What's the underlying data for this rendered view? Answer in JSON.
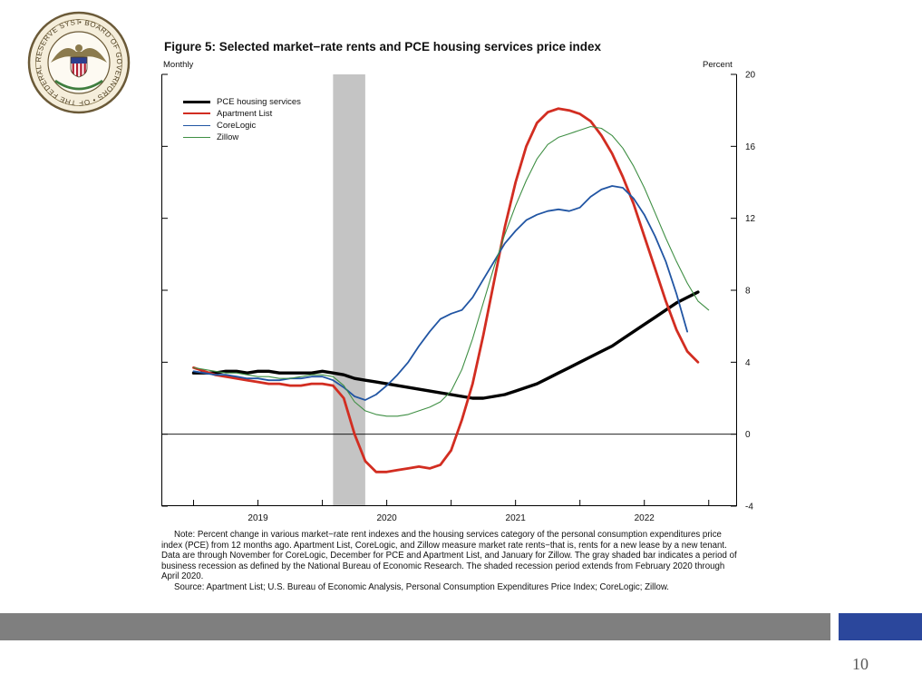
{
  "slide": {
    "page_number": "10"
  },
  "seal": {
    "text": "• BOARD OF GOVERNORS • OF THE FEDERAL RESERVE SYSTEM"
  },
  "figure": {
    "title": "Figure 5: Selected market−rate rents and PCE housing services price index",
    "note": "Note: Percent change in various market−rate rent indexes and the housing services category of the personal consumption expenditures price index (PCE) from 12 months ago. Apartment List, CoreLogic, and Zillow measure market rate rents−that is, rents for a new lease by a new tenant. Data are through November for CoreLogic, December for PCE and Apartment List, and January for Zillow. The gray shaded bar indicates a period of business recession as defined by the National Bureau of Economic Research. The shaded recession period extends from February 2020 through April 2020.",
    "source": "Source: Apartment List; U.S. Bureau of Economic Analysis, Personal Consumption Expenditures Price Index; CoreLogic; Zillow."
  },
  "footer": {
    "bar_color": "#7f7f7f",
    "accent_color": "#2b479c"
  },
  "chart_data": {
    "type": "line",
    "title": "Figure 5: Selected market−rate rents and PCE housing services price index",
    "corner_labels": {
      "left": "Monthly",
      "right": "Percent"
    },
    "xlabel": "",
    "ylabel": "Percent",
    "ylim": [
      -4,
      20
    ],
    "yticks": [
      -4,
      0,
      4,
      8,
      12,
      16,
      20
    ],
    "xlim": [
      2018.75,
      2023.22
    ],
    "xticks": [
      2019,
      2020,
      2021,
      2022
    ],
    "grid": false,
    "legend_position": "top-left",
    "recession_band": {
      "start": 2020.083,
      "end": 2020.333,
      "color": "#c4c4c4",
      "meaning": "NBER recession, February 2020 through April 2020"
    },
    "series": [
      {
        "name": "PCE housing services",
        "color": "#000000",
        "width": 3.4,
        "start": 2019.0,
        "step_months": 1,
        "values": [
          3.4,
          3.4,
          3.4,
          3.5,
          3.5,
          3.4,
          3.5,
          3.5,
          3.4,
          3.4,
          3.4,
          3.4,
          3.5,
          3.4,
          3.3,
          3.1,
          3.0,
          2.9,
          2.8,
          2.7,
          2.6,
          2.5,
          2.4,
          2.3,
          2.2,
          2.1,
          2.0,
          2.0,
          2.1,
          2.2,
          2.4,
          2.6,
          2.8,
          3.1,
          3.4,
          3.7,
          4.0,
          4.3,
          4.6,
          4.9,
          5.3,
          5.7,
          6.1,
          6.5,
          6.9,
          7.3,
          7.6,
          7.9
        ]
      },
      {
        "name": "Apartment List",
        "color": "#d22d21",
        "width": 2.8,
        "start": 2019.0,
        "step_months": 1,
        "values": [
          3.7,
          3.5,
          3.3,
          3.2,
          3.1,
          3.0,
          2.9,
          2.8,
          2.8,
          2.7,
          2.7,
          2.8,
          2.8,
          2.7,
          2.0,
          0.0,
          -1.5,
          -2.1,
          -2.1,
          -2.0,
          -1.9,
          -1.8,
          -1.9,
          -1.7,
          -0.9,
          0.8,
          2.8,
          5.5,
          8.5,
          11.5,
          14.0,
          16.0,
          17.3,
          17.9,
          18.1,
          18.0,
          17.8,
          17.4,
          16.6,
          15.6,
          14.3,
          12.8,
          11.0,
          9.2,
          7.4,
          5.8,
          4.6,
          4.0
        ]
      },
      {
        "name": "CoreLogic",
        "color": "#2155a3",
        "width": 1.8,
        "start": 2019.0,
        "step_months": 1,
        "values": [
          3.5,
          3.4,
          3.3,
          3.3,
          3.2,
          3.1,
          3.1,
          3.0,
          3.0,
          3.1,
          3.1,
          3.2,
          3.2,
          3.0,
          2.6,
          2.1,
          1.9,
          2.2,
          2.7,
          3.3,
          4.0,
          4.9,
          5.7,
          6.4,
          6.7,
          6.9,
          7.6,
          8.6,
          9.6,
          10.6,
          11.3,
          11.9,
          12.2,
          12.4,
          12.5,
          12.4,
          12.6,
          13.2,
          13.6,
          13.8,
          13.7,
          13.1,
          12.2,
          11.0,
          9.6,
          7.8,
          5.7
        ]
      },
      {
        "name": "Zillow",
        "color": "#3f8f44",
        "width": 1.1,
        "start": 2019.0,
        "step_months": 1,
        "values": [
          3.7,
          3.6,
          3.5,
          3.4,
          3.4,
          3.3,
          3.2,
          3.2,
          3.1,
          3.1,
          3.2,
          3.3,
          3.3,
          3.2,
          2.7,
          1.8,
          1.3,
          1.1,
          1.0,
          1.0,
          1.1,
          1.3,
          1.5,
          1.8,
          2.4,
          3.6,
          5.3,
          7.3,
          9.3,
          11.1,
          12.7,
          14.1,
          15.3,
          16.1,
          16.5,
          16.7,
          16.9,
          17.1,
          17.0,
          16.6,
          15.9,
          14.9,
          13.7,
          12.3,
          10.9,
          9.6,
          8.4,
          7.4,
          6.9
        ]
      }
    ]
  }
}
